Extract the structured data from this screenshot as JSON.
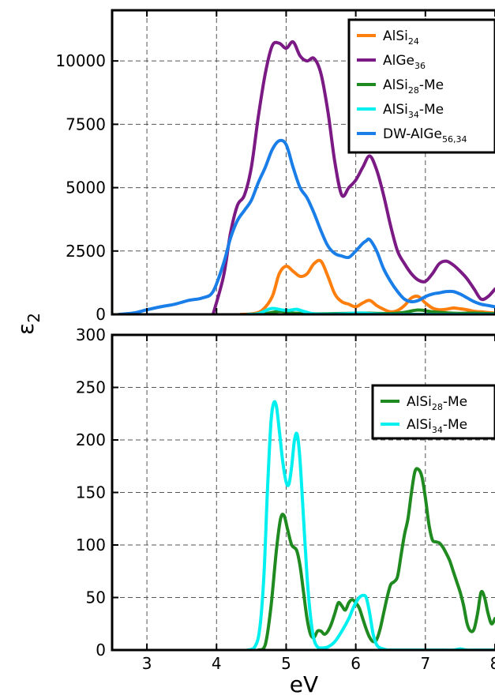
{
  "chart_data": [
    {
      "type": "line",
      "xlim": [
        2.5,
        8.0
      ],
      "ylim": [
        0,
        12000
      ],
      "xticks": [
        3,
        4,
        5,
        6,
        7,
        8
      ],
      "yticks": [
        0,
        2500,
        5000,
        7500,
        10000
      ],
      "ytick_labels": [
        "0",
        "2500",
        "5000",
        "7500",
        "10000"
      ],
      "grid": true,
      "legend": "top-right",
      "series": [
        {
          "name": "AlSi",
          "sub": "24",
          "suffix": "",
          "color": "#ff7f0e",
          "x": [
            4.35,
            4.5,
            4.65,
            4.8,
            4.9,
            5.0,
            5.1,
            5.2,
            5.3,
            5.4,
            5.5,
            5.6,
            5.7,
            5.8,
            5.9,
            6.0,
            6.1,
            6.2,
            6.3,
            6.4,
            6.5,
            6.6,
            6.7,
            6.8,
            6.9,
            7.0,
            7.1,
            7.2,
            7.3,
            7.4,
            7.5,
            7.6,
            7.7,
            7.8,
            7.9,
            8.0
          ],
          "y": [
            0,
            20,
            150,
            700,
            1600,
            1900,
            1700,
            1500,
            1600,
            2000,
            2100,
            1500,
            800,
            500,
            400,
            300,
            450,
            550,
            350,
            200,
            100,
            150,
            350,
            650,
            700,
            450,
            250,
            180,
            200,
            250,
            220,
            180,
            120,
            100,
            70,
            50
          ]
        },
        {
          "name": "AlGe",
          "sub": "36",
          "suffix": "",
          "color": "#7b1a84",
          "x": [
            3.95,
            4.1,
            4.2,
            4.3,
            4.4,
            4.5,
            4.6,
            4.7,
            4.8,
            4.9,
            5.0,
            5.1,
            5.2,
            5.3,
            5.4,
            5.5,
            5.6,
            5.7,
            5.8,
            5.9,
            6.0,
            6.1,
            6.2,
            6.3,
            6.4,
            6.5,
            6.6,
            6.7,
            6.8,
            6.9,
            7.0,
            7.1,
            7.2,
            7.3,
            7.4,
            7.5,
            7.6,
            7.7,
            7.8,
            7.9,
            8.0
          ],
          "y": [
            0,
            1500,
            3200,
            4300,
            4700,
            5800,
            7800,
            9500,
            10600,
            10700,
            10500,
            10750,
            10200,
            10000,
            10100,
            9500,
            8000,
            6000,
            4700,
            5000,
            5300,
            5800,
            6250,
            5700,
            4700,
            3500,
            2500,
            2000,
            1600,
            1350,
            1300,
            1600,
            2000,
            2100,
            1950,
            1700,
            1400,
            1000,
            600,
            700,
            1000
          ]
        },
        {
          "name": "AlSi",
          "sub": "28",
          "suffix": "-Me",
          "color": "#1f8a1f",
          "x": [
            4.5,
            4.7,
            4.9,
            5.0,
            5.1,
            5.2,
            5.3,
            5.5,
            5.7,
            5.9,
            6.1,
            6.3,
            6.5,
            6.7,
            6.9,
            7.1,
            7.3,
            7.5,
            7.7,
            7.9,
            8.0
          ],
          "y": [
            0,
            30,
            120,
            100,
            50,
            40,
            30,
            20,
            30,
            40,
            50,
            40,
            30,
            80,
            170,
            100,
            60,
            40,
            50,
            30,
            30
          ]
        },
        {
          "name": "AlSi",
          "sub": "34",
          "suffix": "-Me",
          "color": "#00f0f0",
          "x": [
            4.45,
            4.6,
            4.75,
            4.82,
            4.95,
            5.05,
            5.15,
            5.25,
            5.4,
            5.6,
            5.8,
            6.0,
            6.1,
            6.25,
            6.4,
            6.6,
            7.0,
            7.5,
            8.0
          ],
          "y": [
            0,
            30,
            200,
            235,
            170,
            160,
            200,
            120,
            20,
            10,
            20,
            50,
            50,
            20,
            5,
            0,
            0,
            0,
            0
          ]
        },
        {
          "name": "DW-AlGe",
          "sub": "56,34",
          "suffix": "",
          "color": "#1a7ee8",
          "x": [
            2.6,
            2.8,
            3.0,
            3.2,
            3.4,
            3.6,
            3.8,
            3.95,
            4.1,
            4.2,
            4.3,
            4.4,
            4.5,
            4.6,
            4.7,
            4.8,
            4.9,
            5.0,
            5.1,
            5.2,
            5.3,
            5.4,
            5.5,
            5.6,
            5.7,
            5.8,
            5.9,
            6.0,
            6.1,
            6.15,
            6.2,
            6.3,
            6.4,
            6.5,
            6.6,
            6.7,
            6.8,
            6.9,
            7.0,
            7.1,
            7.2,
            7.3,
            7.4,
            7.5,
            7.6,
            7.7,
            7.8,
            7.9,
            8.0
          ],
          "y": [
            0,
            50,
            180,
            300,
            400,
            550,
            650,
            900,
            2000,
            3000,
            3700,
            4100,
            4500,
            5200,
            5800,
            6500,
            6850,
            6700,
            5800,
            5000,
            4600,
            4000,
            3300,
            2700,
            2400,
            2300,
            2250,
            2500,
            2800,
            2900,
            2950,
            2500,
            1800,
            1300,
            900,
            600,
            500,
            550,
            700,
            800,
            850,
            900,
            900,
            800,
            650,
            500,
            400,
            350,
            300
          ]
        }
      ]
    },
    {
      "type": "line",
      "xlim": [
        2.5,
        8.0
      ],
      "ylim": [
        0,
        300
      ],
      "xticks": [
        3,
        4,
        5,
        6,
        7,
        8
      ],
      "xtick_labels": [
        "3",
        "4",
        "5",
        "6",
        "7",
        "8"
      ],
      "yticks": [
        0,
        50,
        100,
        150,
        200,
        250,
        300
      ],
      "ytick_labels": [
        "0",
        "50",
        "100",
        "150",
        "200",
        "250",
        "300"
      ],
      "xlabel": "eV",
      "grid": true,
      "legend": "top-right",
      "series": [
        {
          "name": "AlSi",
          "sub": "28",
          "suffix": "-Me",
          "color": "#1f8a1f",
          "x": [
            4.6,
            4.7,
            4.78,
            4.86,
            4.92,
            4.97,
            5.02,
            5.08,
            5.15,
            5.2,
            5.25,
            5.3,
            5.35,
            5.4,
            5.45,
            5.5,
            5.55,
            5.6,
            5.65,
            5.7,
            5.75,
            5.8,
            5.85,
            5.9,
            5.95,
            6.0,
            6.05,
            6.1,
            6.15,
            6.2,
            6.25,
            6.3,
            6.35,
            6.4,
            6.45,
            6.5,
            6.55,
            6.6,
            6.65,
            6.7,
            6.75,
            6.8,
            6.85,
            6.9,
            6.95,
            7.0,
            7.05,
            7.1,
            7.15,
            7.2,
            7.25,
            7.3,
            7.35,
            7.4,
            7.45,
            7.5,
            7.55,
            7.6,
            7.65,
            7.7,
            7.75,
            7.8,
            7.85,
            7.9,
            7.95,
            8.0
          ],
          "y": [
            0,
            5,
            40,
            95,
            125,
            128,
            115,
            100,
            95,
            80,
            55,
            30,
            15,
            12,
            18,
            18,
            15,
            18,
            25,
            35,
            45,
            42,
            38,
            45,
            48,
            45,
            40,
            30,
            20,
            12,
            8,
            10,
            20,
            35,
            50,
            62,
            65,
            70,
            90,
            110,
            125,
            150,
            170,
            172,
            165,
            145,
            120,
            105,
            103,
            102,
            98,
            92,
            85,
            75,
            65,
            55,
            42,
            25,
            18,
            20,
            35,
            55,
            50,
            35,
            25,
            30
          ]
        },
        {
          "name": "AlSi",
          "sub": "34",
          "suffix": "-Me",
          "color": "#00f0f0",
          "x": [
            4.45,
            4.55,
            4.62,
            4.68,
            4.73,
            4.78,
            4.82,
            4.86,
            4.9,
            4.95,
            5.0,
            5.04,
            5.08,
            5.12,
            5.16,
            5.2,
            5.25,
            5.3,
            5.35,
            5.4,
            5.45,
            5.5,
            5.6,
            5.7,
            5.8,
            5.9,
            5.95,
            6.0,
            6.05,
            6.1,
            6.15,
            6.2,
            6.25,
            6.3,
            6.35,
            6.4,
            6.45,
            6.5,
            6.6,
            6.8,
            7.0,
            7.2,
            7.4,
            7.5,
            7.6,
            7.8,
            8.0
          ],
          "y": [
            0,
            3,
            20,
            70,
            150,
            215,
            235,
            232,
            210,
            180,
            160,
            158,
            175,
            200,
            205,
            180,
            125,
            70,
            32,
            10,
            3,
            2,
            3,
            8,
            18,
            30,
            38,
            45,
            50,
            52,
            50,
            35,
            15,
            5,
            2,
            1,
            0,
            0,
            0,
            0,
            0,
            0,
            0,
            1,
            0,
            0,
            0
          ]
        }
      ]
    }
  ],
  "ylabel": "ε",
  "ylabel_sub": "2"
}
